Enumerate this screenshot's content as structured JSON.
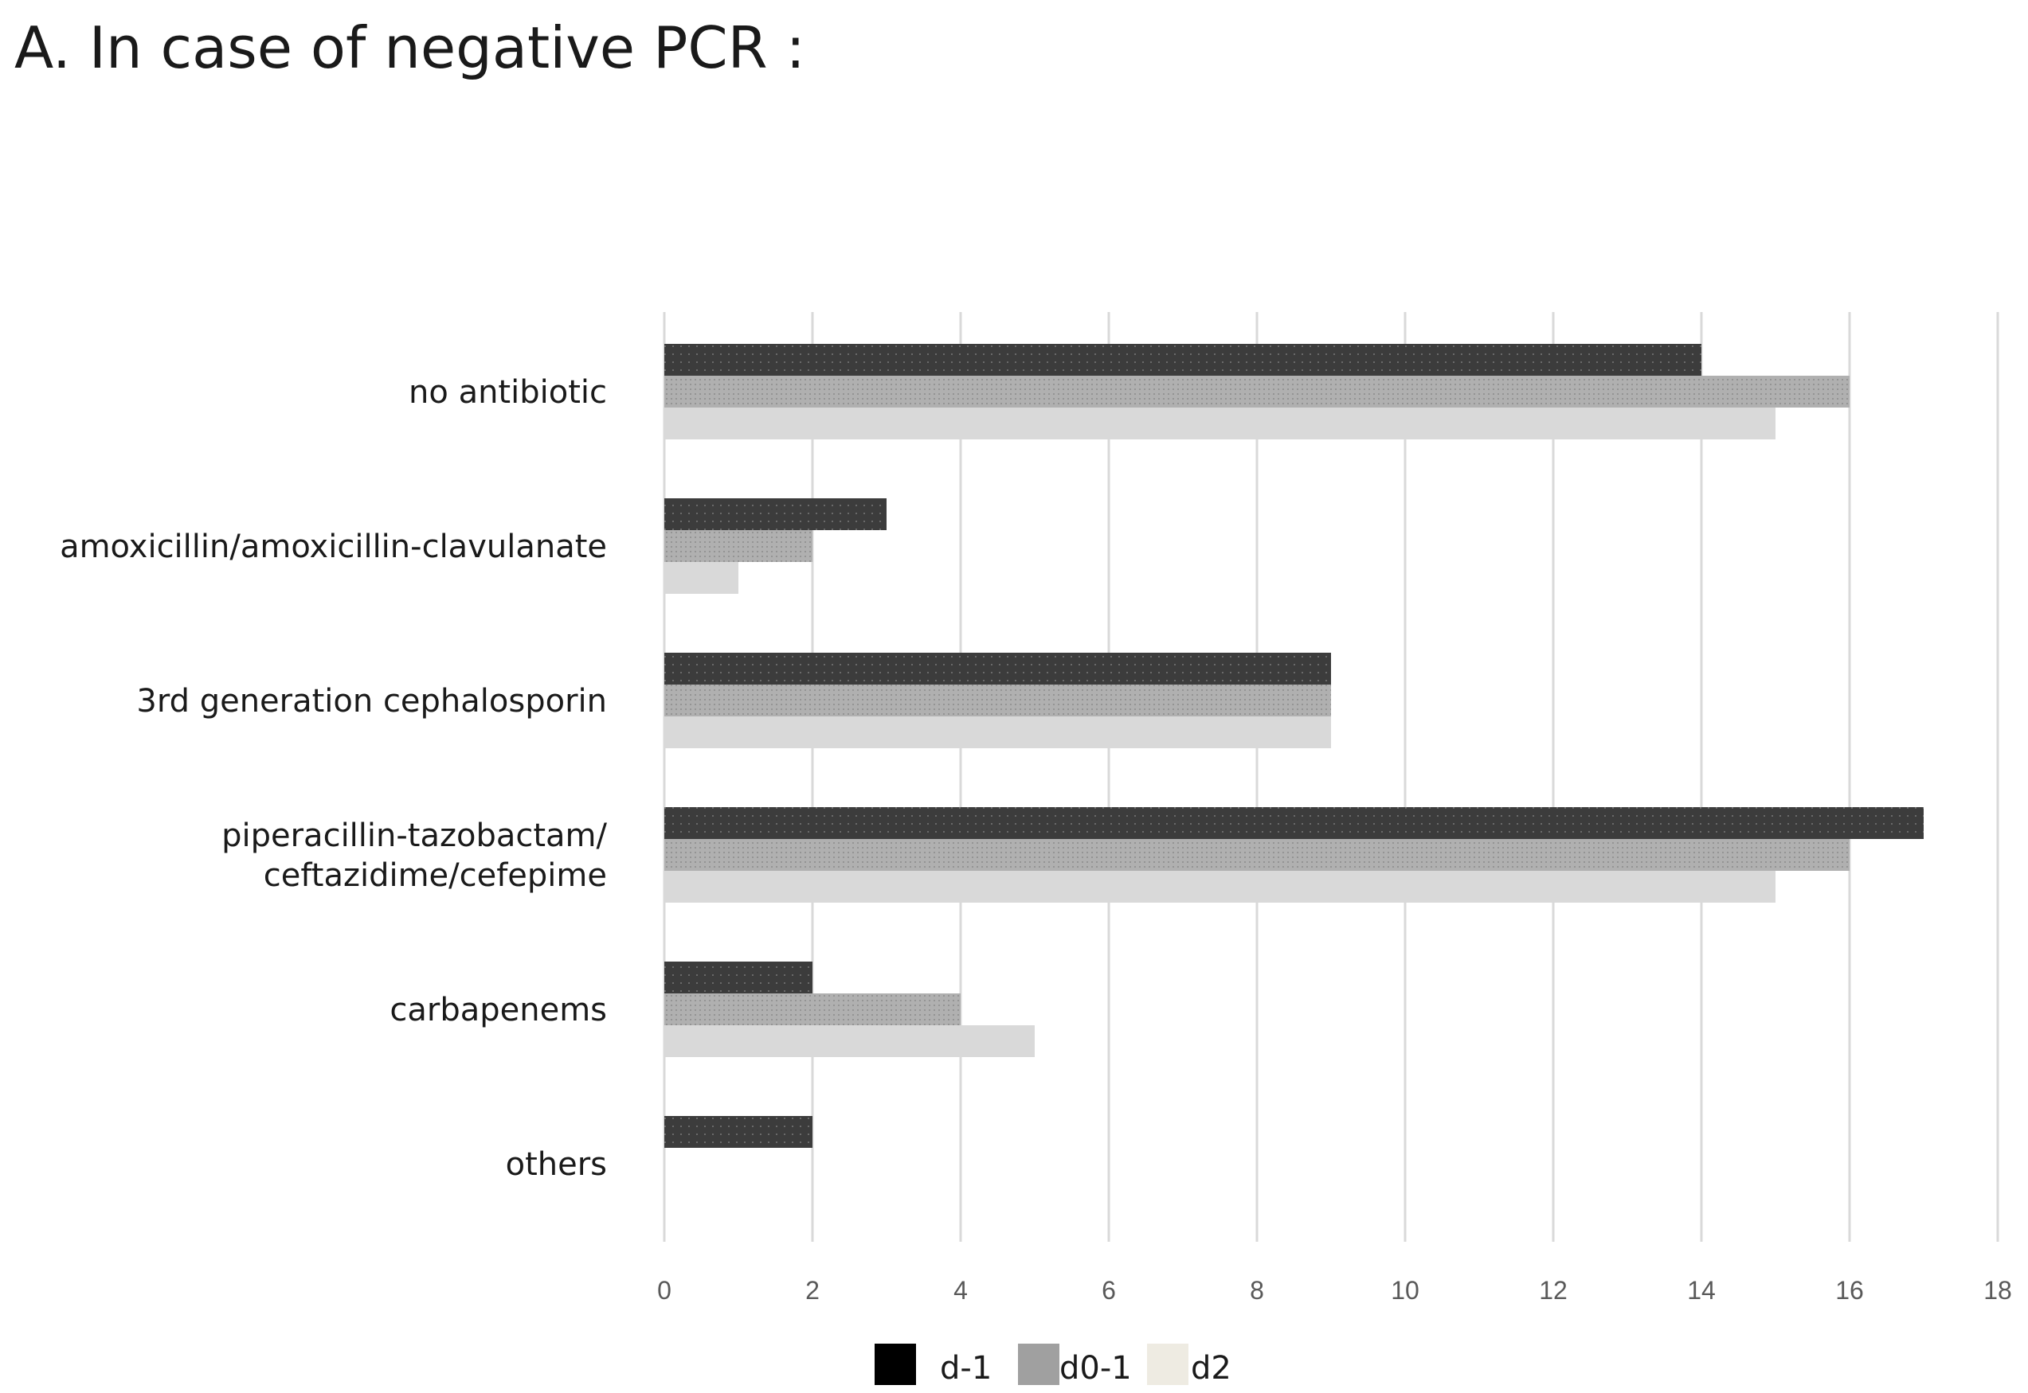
{
  "chart_data": {
    "type": "bar",
    "orientation": "horizontal",
    "title": "A. In case of negative PCR :",
    "xlabel": "",
    "ylabel": "",
    "xlim": [
      0,
      18
    ],
    "x_ticks": [
      0,
      2,
      4,
      6,
      8,
      10,
      12,
      14,
      16,
      18
    ],
    "grid": true,
    "legend_position": "bottom",
    "categories": [
      [
        "no antibiotic"
      ],
      [
        "amoxicillin/amoxicillin-clavulanate"
      ],
      [
        "3rd generation cephalosporin"
      ],
      [
        "piperacillin-tazobactam/",
        "ceftazidime/cefepime"
      ],
      [
        "carbapenems"
      ],
      [
        "others"
      ]
    ],
    "series": [
      {
        "name": "d-1",
        "legend_color": "#000000",
        "bar_color": "#3c3c3c",
        "values": [
          14,
          3,
          9,
          17,
          2,
          2
        ]
      },
      {
        "name": "d0-1",
        "legend_color": "#a0a0a0",
        "bar_color": "#b0b0b0",
        "values": [
          16,
          2,
          9,
          16,
          4,
          0
        ]
      },
      {
        "name": "d2",
        "legend_color": "#eeebe2",
        "bar_color": "#d9d9d9",
        "values": [
          15,
          1,
          9,
          15,
          5,
          0
        ]
      }
    ]
  }
}
